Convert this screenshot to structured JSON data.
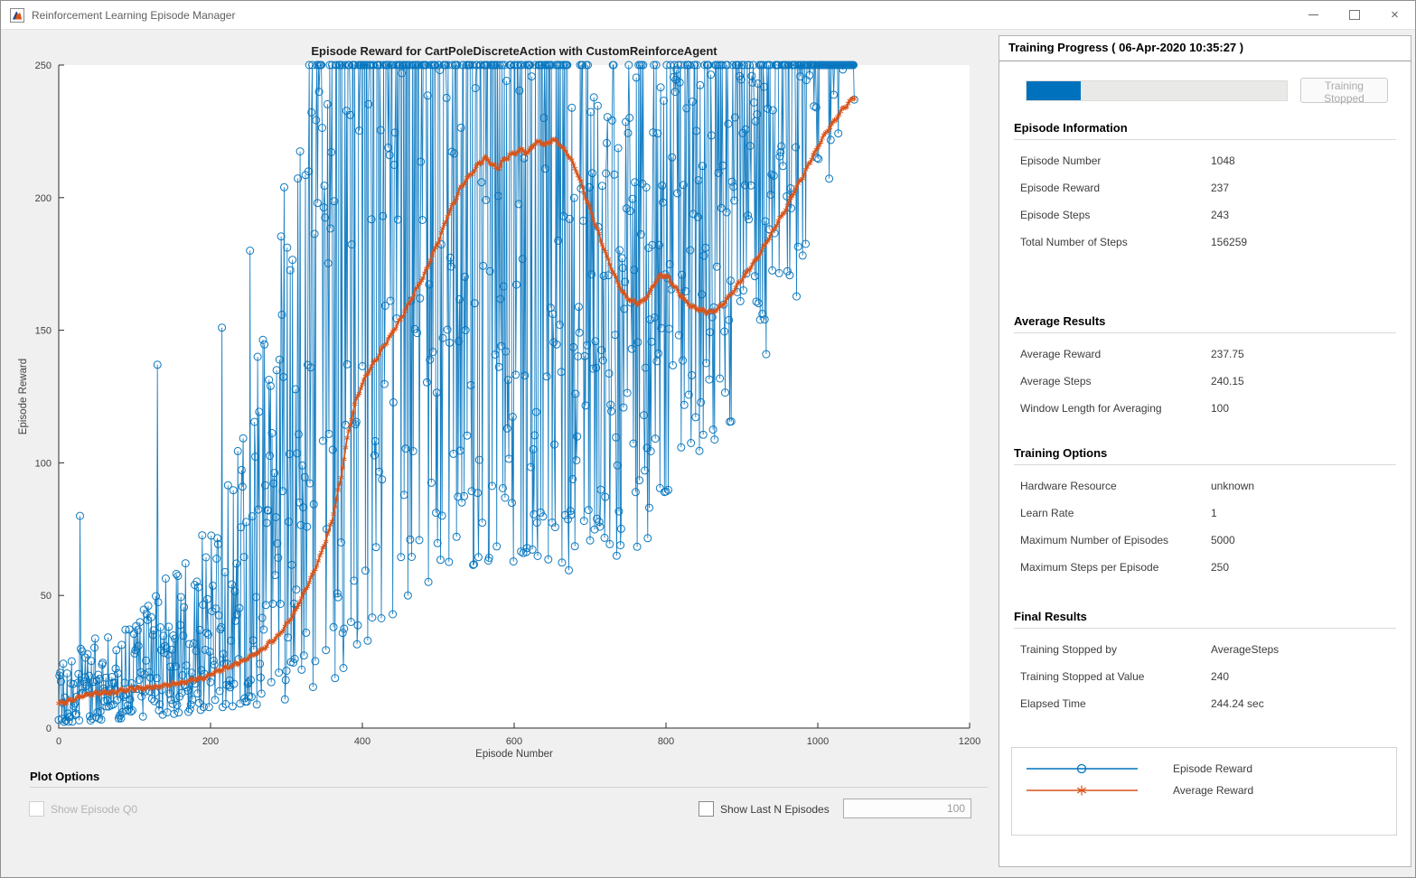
{
  "window": {
    "title": "Reinforcement Learning Episode Manager",
    "close_glyph": "×"
  },
  "panel": {
    "header": "Training Progress ( 06-Apr-2020 10:35:27 )",
    "progress": {
      "percent": 21,
      "button_label": "Training Stopped"
    },
    "sections": [
      {
        "title": "Episode Information",
        "rows": [
          {
            "label": "Episode Number",
            "value": "1048"
          },
          {
            "label": "Episode Reward",
            "value": "237"
          },
          {
            "label": "Episode Steps",
            "value": "243"
          },
          {
            "label": "Total Number of Steps",
            "value": "156259"
          }
        ]
      },
      {
        "title": "Average Results",
        "rows": [
          {
            "label": "Average Reward",
            "value": "237.75"
          },
          {
            "label": "Average Steps",
            "value": "240.15"
          },
          {
            "label": "Window Length for Averaging",
            "value": "100"
          }
        ]
      },
      {
        "title": "Training Options",
        "rows": [
          {
            "label": "Hardware Resource",
            "value": "unknown"
          },
          {
            "label": "Learn Rate",
            "value": "1"
          },
          {
            "label": "Maximum Number of Episodes",
            "value": "5000"
          },
          {
            "label": "Maximum Steps per Episode",
            "value": "250"
          }
        ]
      },
      {
        "title": "Final Results",
        "rows": [
          {
            "label": "Training Stopped by",
            "value": "AverageSteps"
          },
          {
            "label": "Training Stopped at Value",
            "value": "240"
          },
          {
            "label": "Elapsed Time",
            "value": "244.24 sec"
          }
        ]
      }
    ],
    "legend": {
      "entries": [
        {
          "label": "Episode Reward",
          "color": "#0072BD",
          "marker": "circle"
        },
        {
          "label": "Average Reward",
          "color": "#D95319",
          "marker": "asterisk"
        }
      ]
    }
  },
  "plot_options": {
    "title": "Plot Options",
    "show_episode_q0": {
      "label": "Show Episode Q0",
      "checked": false,
      "enabled": false
    },
    "show_last_n": {
      "label": "Show Last N Episodes",
      "checked": false,
      "enabled": true
    },
    "n_value": "100"
  },
  "chart_data": {
    "type": "line",
    "title": "Episode Reward for CartPoleDiscreteAction with CustomReinforceAgent",
    "xlabel": "Episode Number",
    "ylabel": "Episode Reward",
    "xlim": [
      0,
      1200
    ],
    "ylim": [
      0,
      250
    ],
    "x_ticks": [
      0,
      200,
      400,
      600,
      800,
      1000,
      1200
    ],
    "y_ticks": [
      0,
      50,
      100,
      150,
      200,
      250
    ],
    "grid": false,
    "episodes_total": 1048,
    "series": [
      {
        "name": "Episode Reward",
        "color": "#0072BD",
        "marker": "circle",
        "style": "noisy line, one point per episode, rewards capped at 250",
        "final_value": 237,
        "cap_value": 250,
        "envelope_keypoints": [
          [
            0,
            2,
            28
          ],
          [
            50,
            3,
            34
          ],
          [
            100,
            4,
            46
          ],
          [
            150,
            5,
            60
          ],
          [
            200,
            7,
            80
          ],
          [
            240,
            8,
            110
          ],
          [
            270,
            9,
            150
          ],
          [
            300,
            10,
            210
          ],
          [
            330,
            12,
            250
          ],
          [
            370,
            18,
            250
          ],
          [
            420,
            35,
            250
          ],
          [
            470,
            52,
            250
          ],
          [
            520,
            60,
            250
          ],
          [
            580,
            60,
            250
          ],
          [
            640,
            60,
            250
          ],
          [
            690,
            58,
            238
          ],
          [
            730,
            60,
            242
          ],
          [
            770,
            68,
            250
          ],
          [
            810,
            88,
            250
          ],
          [
            850,
            100,
            250
          ],
          [
            890,
            115,
            250
          ],
          [
            930,
            135,
            250
          ],
          [
            965,
            155,
            250
          ],
          [
            995,
            185,
            250
          ],
          [
            1020,
            210,
            250
          ],
          [
            1048,
            222,
            250
          ]
        ],
        "cap_probability_keypoints": [
          [
            0,
            0
          ],
          [
            295,
            0
          ],
          [
            320,
            0.08
          ],
          [
            350,
            0.3
          ],
          [
            390,
            0.45
          ],
          [
            440,
            0.5
          ],
          [
            560,
            0.52
          ],
          [
            620,
            0.48
          ],
          [
            655,
            0.3
          ],
          [
            685,
            0.12
          ],
          [
            705,
            0.06
          ],
          [
            745,
            0.08
          ],
          [
            780,
            0.15
          ],
          [
            820,
            0.22
          ],
          [
            860,
            0.22
          ],
          [
            900,
            0.28
          ],
          [
            940,
            0.38
          ],
          [
            975,
            0.55
          ],
          [
            1000,
            0.75
          ],
          [
            1015,
            0.9
          ],
          [
            1048,
            0.92
          ]
        ],
        "outliers": [
          [
            28,
            80
          ],
          [
            130,
            137
          ],
          [
            215,
            151
          ],
          [
            252,
            180
          ],
          [
            262,
            140
          ]
        ]
      },
      {
        "name": "Average Reward",
        "color": "#D95319",
        "marker": "asterisk",
        "window_length": 100,
        "final_value": 237.75,
        "keypoints": [
          [
            0,
            9
          ],
          [
            20,
            11
          ],
          [
            40,
            13
          ],
          [
            60,
            13
          ],
          [
            80,
            14
          ],
          [
            100,
            15
          ],
          [
            130,
            15.5
          ],
          [
            160,
            17
          ],
          [
            190,
            19
          ],
          [
            215,
            22
          ],
          [
            240,
            25
          ],
          [
            265,
            29
          ],
          [
            290,
            35
          ],
          [
            310,
            43
          ],
          [
            330,
            55
          ],
          [
            345,
            65
          ],
          [
            360,
            78
          ],
          [
            372,
            95
          ],
          [
            382,
            112
          ],
          [
            392,
            124
          ],
          [
            405,
            133
          ],
          [
            420,
            140
          ],
          [
            435,
            147
          ],
          [
            450,
            154
          ],
          [
            465,
            162
          ],
          [
            480,
            170
          ],
          [
            492,
            178
          ],
          [
            502,
            185
          ],
          [
            512,
            193
          ],
          [
            522,
            199
          ],
          [
            530,
            204
          ],
          [
            538,
            207
          ],
          [
            546,
            210
          ],
          [
            554,
            213
          ],
          [
            562,
            215
          ],
          [
            570,
            213
          ],
          [
            578,
            211
          ],
          [
            586,
            214
          ],
          [
            594,
            216
          ],
          [
            602,
            217
          ],
          [
            610,
            218
          ],
          [
            618,
            217
          ],
          [
            626,
            220
          ],
          [
            634,
            221
          ],
          [
            642,
            220
          ],
          [
            650,
            222
          ],
          [
            658,
            221
          ],
          [
            666,
            218
          ],
          [
            674,
            215
          ],
          [
            682,
            210
          ],
          [
            690,
            204
          ],
          [
            698,
            197
          ],
          [
            706,
            191
          ],
          [
            714,
            184
          ],
          [
            722,
            178
          ],
          [
            730,
            172
          ],
          [
            738,
            167
          ],
          [
            746,
            163
          ],
          [
            754,
            161
          ],
          [
            762,
            160
          ],
          [
            770,
            161
          ],
          [
            778,
            164
          ],
          [
            786,
            168
          ],
          [
            794,
            171
          ],
          [
            802,
            170
          ],
          [
            810,
            167
          ],
          [
            818,
            164
          ],
          [
            826,
            161
          ],
          [
            834,
            159
          ],
          [
            842,
            158
          ],
          [
            852,
            157
          ],
          [
            862,
            157
          ],
          [
            872,
            159
          ],
          [
            882,
            162
          ],
          [
            892,
            166
          ],
          [
            902,
            170
          ],
          [
            912,
            174
          ],
          [
            922,
            178
          ],
          [
            932,
            183
          ],
          [
            942,
            188
          ],
          [
            952,
            193
          ],
          [
            962,
            198
          ],
          [
            972,
            204
          ],
          [
            982,
            209
          ],
          [
            992,
            215
          ],
          [
            1002,
            220
          ],
          [
            1012,
            225
          ],
          [
            1022,
            229
          ],
          [
            1032,
            233
          ],
          [
            1042,
            236
          ],
          [
            1048,
            238
          ]
        ]
      }
    ]
  }
}
